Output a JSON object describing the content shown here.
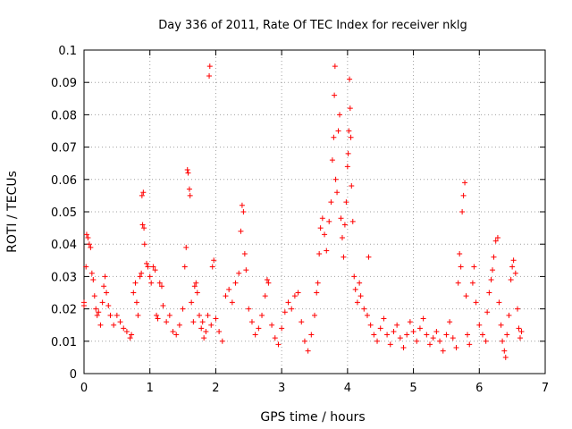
{
  "chart_data": {
    "type": "scatter",
    "title": "Day 336 of 2011, Rate Of TEC Index for receiver nklg",
    "xlabel": "GPS time / hours",
    "ylabel": "ROTI / TECUs",
    "xlim": [
      0,
      7
    ],
    "ylim": [
      0,
      0.1
    ],
    "xticks": [
      "0",
      "1",
      "2",
      "3",
      "4",
      "5",
      "6",
      "7"
    ],
    "yticks": [
      "0",
      "0.01",
      "0.02",
      "0.03",
      "0.04",
      "0.05",
      "0.06",
      "0.07",
      "0.08",
      "0.09",
      "0.1"
    ],
    "grid": true,
    "marker": "+",
    "color": "#ff0000",
    "series": [
      {
        "name": "ROTI",
        "points": [
          [
            0.0,
            0.022
          ],
          [
            0.0,
            0.021
          ],
          [
            0.03,
            0.033
          ],
          [
            0.04,
            0.043
          ],
          [
            0.06,
            0.042
          ],
          [
            0.08,
            0.04
          ],
          [
            0.1,
            0.039
          ],
          [
            0.12,
            0.031
          ],
          [
            0.14,
            0.029
          ],
          [
            0.16,
            0.024
          ],
          [
            0.18,
            0.02
          ],
          [
            0.2,
            0.018
          ],
          [
            0.22,
            0.019
          ],
          [
            0.25,
            0.015
          ],
          [
            0.28,
            0.022
          ],
          [
            0.3,
            0.027
          ],
          [
            0.32,
            0.03
          ],
          [
            0.34,
            0.025
          ],
          [
            0.37,
            0.021
          ],
          [
            0.4,
            0.018
          ],
          [
            0.45,
            0.015
          ],
          [
            0.5,
            0.018
          ],
          [
            0.55,
            0.016
          ],
          [
            0.6,
            0.014
          ],
          [
            0.65,
            0.013
          ],
          [
            0.7,
            0.011
          ],
          [
            0.72,
            0.012
          ],
          [
            0.75,
            0.025
          ],
          [
            0.78,
            0.028
          ],
          [
            0.8,
            0.022
          ],
          [
            0.82,
            0.018
          ],
          [
            0.85,
            0.03
          ],
          [
            0.87,
            0.031
          ],
          [
            0.88,
            0.055
          ],
          [
            0.89,
            0.046
          ],
          [
            0.9,
            0.056
          ],
          [
            0.91,
            0.045
          ],
          [
            0.92,
            0.04
          ],
          [
            0.95,
            0.034
          ],
          [
            0.97,
            0.033
          ],
          [
            1.0,
            0.03
          ],
          [
            1.02,
            0.028
          ],
          [
            1.05,
            0.033
          ],
          [
            1.08,
            0.032
          ],
          [
            1.1,
            0.018
          ],
          [
            1.12,
            0.017
          ],
          [
            1.15,
            0.028
          ],
          [
            1.18,
            0.027
          ],
          [
            1.2,
            0.021
          ],
          [
            1.25,
            0.016
          ],
          [
            1.3,
            0.018
          ],
          [
            1.35,
            0.013
          ],
          [
            1.4,
            0.012
          ],
          [
            1.45,
            0.015
          ],
          [
            1.5,
            0.02
          ],
          [
            1.53,
            0.033
          ],
          [
            1.55,
            0.039
          ],
          [
            1.57,
            0.063
          ],
          [
            1.58,
            0.062
          ],
          [
            1.6,
            0.057
          ],
          [
            1.61,
            0.055
          ],
          [
            1.63,
            0.022
          ],
          [
            1.66,
            0.016
          ],
          [
            1.68,
            0.027
          ],
          [
            1.7,
            0.028
          ],
          [
            1.72,
            0.025
          ],
          [
            1.75,
            0.018
          ],
          [
            1.78,
            0.014
          ],
          [
            1.8,
            0.016
          ],
          [
            1.82,
            0.011
          ],
          [
            1.85,
            0.013
          ],
          [
            1.88,
            0.018
          ],
          [
            1.9,
            0.092
          ],
          [
            1.91,
            0.095
          ],
          [
            1.93,
            0.015
          ],
          [
            1.95,
            0.033
          ],
          [
            1.97,
            0.035
          ],
          [
            2.0,
            0.017
          ],
          [
            2.05,
            0.013
          ],
          [
            2.1,
            0.01
          ],
          [
            2.15,
            0.024
          ],
          [
            2.2,
            0.026
          ],
          [
            2.25,
            0.022
          ],
          [
            2.3,
            0.028
          ],
          [
            2.35,
            0.031
          ],
          [
            2.38,
            0.044
          ],
          [
            2.4,
            0.052
          ],
          [
            2.42,
            0.05
          ],
          [
            2.44,
            0.037
          ],
          [
            2.46,
            0.032
          ],
          [
            2.5,
            0.02
          ],
          [
            2.55,
            0.016
          ],
          [
            2.6,
            0.012
          ],
          [
            2.65,
            0.014
          ],
          [
            2.7,
            0.018
          ],
          [
            2.75,
            0.024
          ],
          [
            2.78,
            0.029
          ],
          [
            2.8,
            0.028
          ],
          [
            2.85,
            0.015
          ],
          [
            2.9,
            0.011
          ],
          [
            2.95,
            0.009
          ],
          [
            3.0,
            0.014
          ],
          [
            3.05,
            0.019
          ],
          [
            3.1,
            0.022
          ],
          [
            3.15,
            0.02
          ],
          [
            3.2,
            0.024
          ],
          [
            3.25,
            0.025
          ],
          [
            3.3,
            0.016
          ],
          [
            3.35,
            0.01
          ],
          [
            3.4,
            0.007
          ],
          [
            3.45,
            0.012
          ],
          [
            3.5,
            0.018
          ],
          [
            3.53,
            0.025
          ],
          [
            3.55,
            0.028
          ],
          [
            3.57,
            0.037
          ],
          [
            3.59,
            0.045
          ],
          [
            3.62,
            0.048
          ],
          [
            3.65,
            0.043
          ],
          [
            3.68,
            0.038
          ],
          [
            3.72,
            0.047
          ],
          [
            3.75,
            0.053
          ],
          [
            3.77,
            0.066
          ],
          [
            3.79,
            0.073
          ],
          [
            3.8,
            0.086
          ],
          [
            3.81,
            0.095
          ],
          [
            3.82,
            0.06
          ],
          [
            3.84,
            0.056
          ],
          [
            3.86,
            0.075
          ],
          [
            3.88,
            0.08
          ],
          [
            3.9,
            0.048
          ],
          [
            3.92,
            0.042
          ],
          [
            3.94,
            0.036
          ],
          [
            3.96,
            0.046
          ],
          [
            3.98,
            0.053
          ],
          [
            4.0,
            0.064
          ],
          [
            4.01,
            0.068
          ],
          [
            4.02,
            0.075
          ],
          [
            4.03,
            0.091
          ],
          [
            4.04,
            0.082
          ],
          [
            4.05,
            0.073
          ],
          [
            4.06,
            0.058
          ],
          [
            4.08,
            0.047
          ],
          [
            4.1,
            0.03
          ],
          [
            4.12,
            0.026
          ],
          [
            4.15,
            0.022
          ],
          [
            4.18,
            0.028
          ],
          [
            4.2,
            0.024
          ],
          [
            4.25,
            0.02
          ],
          [
            4.3,
            0.018
          ],
          [
            4.32,
            0.036
          ],
          [
            4.35,
            0.015
          ],
          [
            4.4,
            0.012
          ],
          [
            4.45,
            0.01
          ],
          [
            4.5,
            0.014
          ],
          [
            4.55,
            0.017
          ],
          [
            4.6,
            0.012
          ],
          [
            4.65,
            0.009
          ],
          [
            4.7,
            0.013
          ],
          [
            4.75,
            0.015
          ],
          [
            4.8,
            0.011
          ],
          [
            4.85,
            0.008
          ],
          [
            4.9,
            0.012
          ],
          [
            4.95,
            0.016
          ],
          [
            5.0,
            0.013
          ],
          [
            5.05,
            0.01
          ],
          [
            5.1,
            0.014
          ],
          [
            5.15,
            0.017
          ],
          [
            5.2,
            0.012
          ],
          [
            5.25,
            0.009
          ],
          [
            5.3,
            0.011
          ],
          [
            5.35,
            0.013
          ],
          [
            5.4,
            0.01
          ],
          [
            5.45,
            0.007
          ],
          [
            5.5,
            0.012
          ],
          [
            5.55,
            0.016
          ],
          [
            5.6,
            0.011
          ],
          [
            5.65,
            0.008
          ],
          [
            5.68,
            0.028
          ],
          [
            5.7,
            0.037
          ],
          [
            5.72,
            0.033
          ],
          [
            5.74,
            0.05
          ],
          [
            5.76,
            0.055
          ],
          [
            5.78,
            0.059
          ],
          [
            5.8,
            0.024
          ],
          [
            5.82,
            0.012
          ],
          [
            5.85,
            0.009
          ],
          [
            5.9,
            0.028
          ],
          [
            5.92,
            0.033
          ],
          [
            5.95,
            0.022
          ],
          [
            6.0,
            0.015
          ],
          [
            6.05,
            0.012
          ],
          [
            6.1,
            0.01
          ],
          [
            6.12,
            0.019
          ],
          [
            6.15,
            0.025
          ],
          [
            6.18,
            0.029
          ],
          [
            6.2,
            0.032
          ],
          [
            6.22,
            0.036
          ],
          [
            6.25,
            0.041
          ],
          [
            6.28,
            0.042
          ],
          [
            6.3,
            0.022
          ],
          [
            6.33,
            0.015
          ],
          [
            6.35,
            0.01
          ],
          [
            6.38,
            0.007
          ],
          [
            6.4,
            0.005
          ],
          [
            6.42,
            0.012
          ],
          [
            6.45,
            0.018
          ],
          [
            6.48,
            0.029
          ],
          [
            6.5,
            0.033
          ],
          [
            6.52,
            0.035
          ],
          [
            6.55,
            0.031
          ],
          [
            6.58,
            0.02
          ],
          [
            6.6,
            0.014
          ],
          [
            6.62,
            0.011
          ],
          [
            6.64,
            0.013
          ]
        ]
      }
    ]
  }
}
